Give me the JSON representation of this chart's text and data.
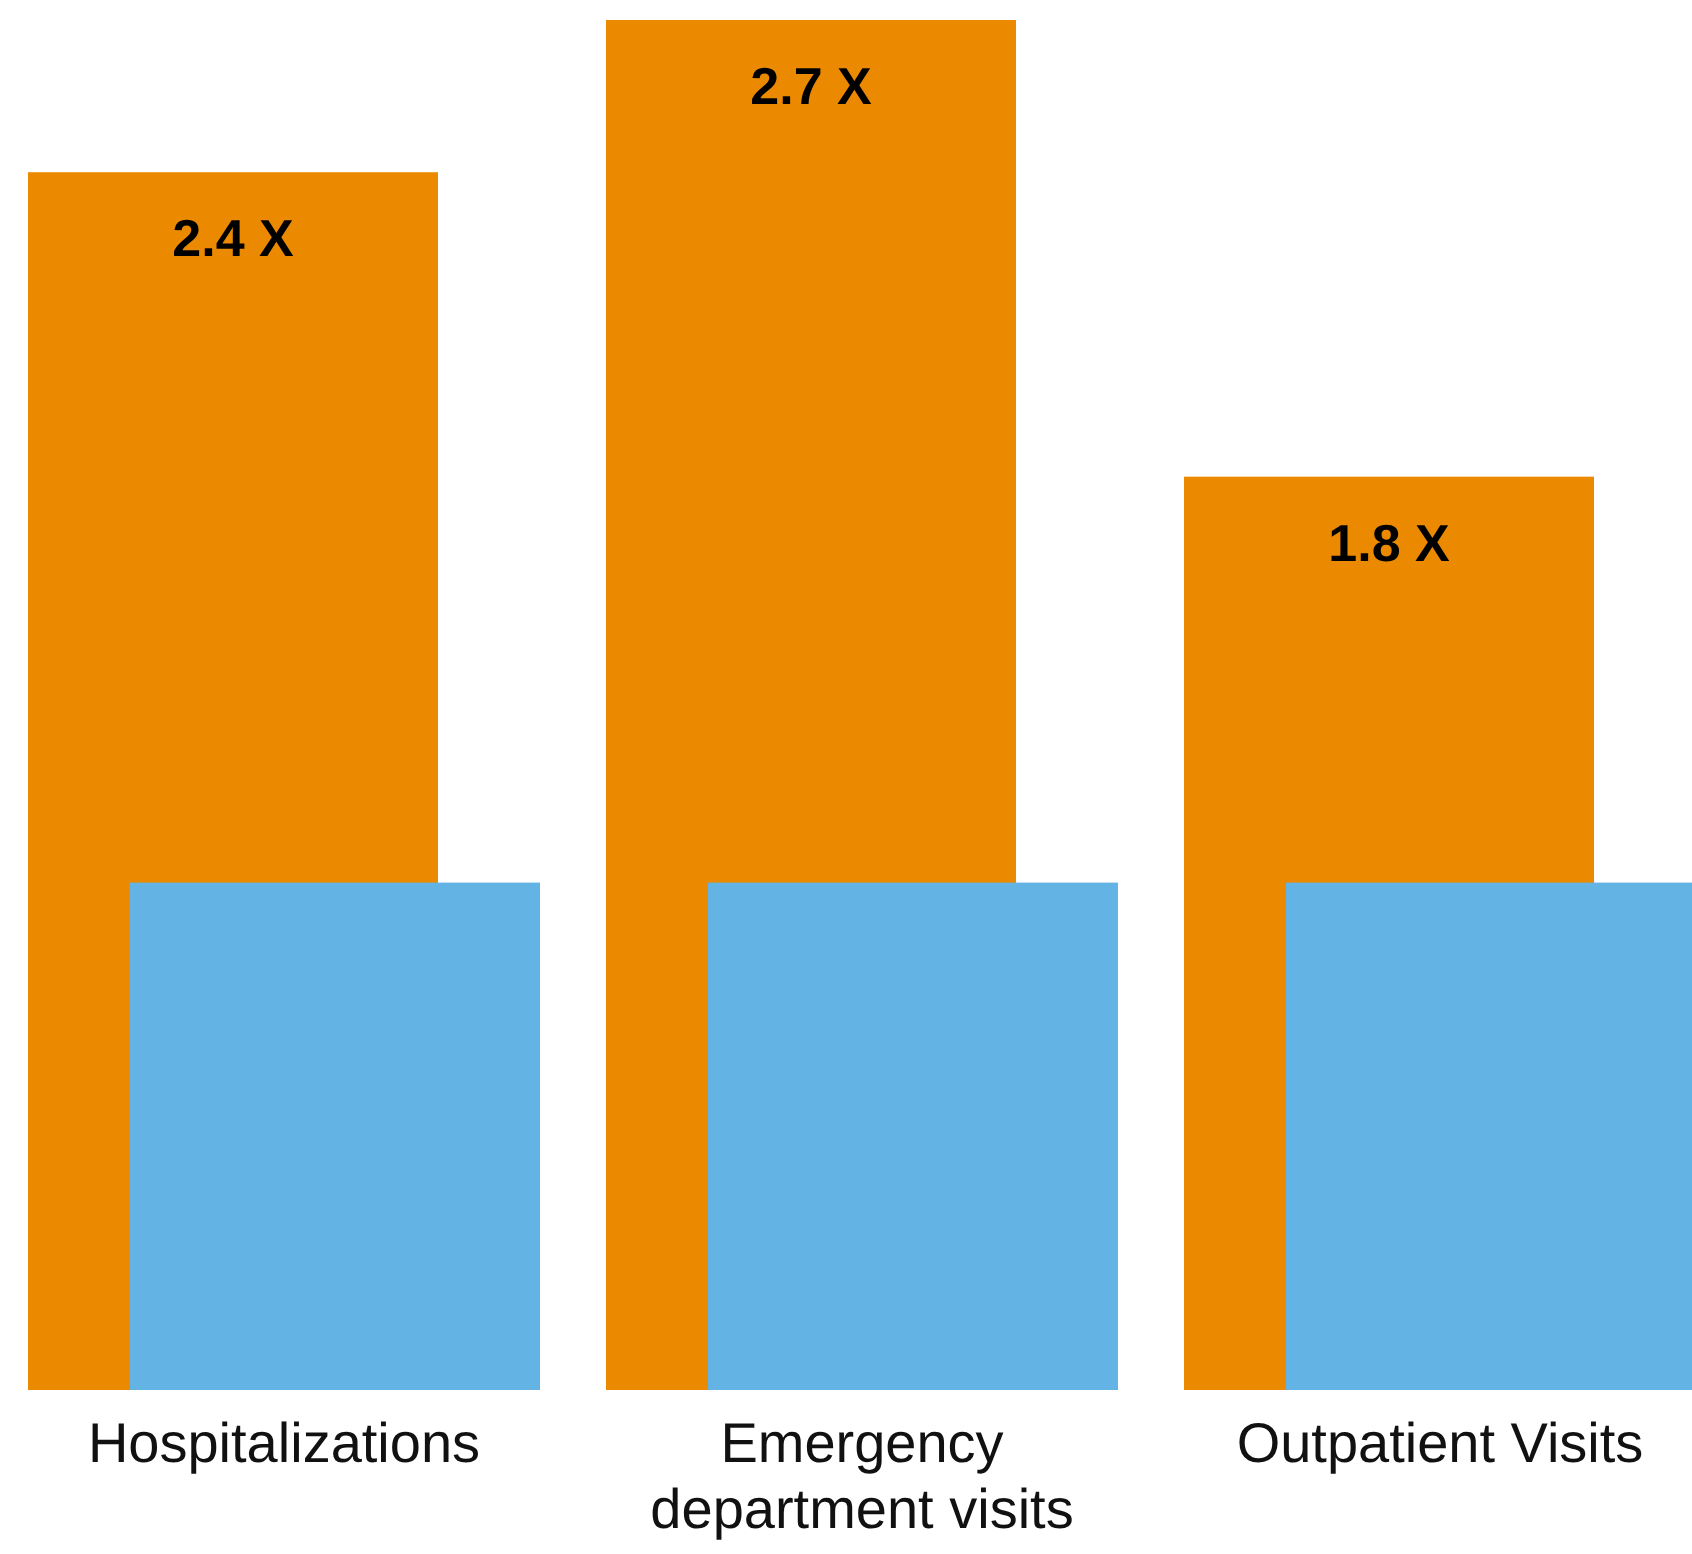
{
  "chart_data": {
    "type": "bar",
    "categories": [
      "Hospitalizations",
      "Emergency department visits",
      "Outpatient Visits"
    ],
    "series": [
      {
        "color": "#eb8a00",
        "values": [
          2.4,
          2.7,
          1.8
        ],
        "value_labels": [
          "2.4 X",
          "2.7 X",
          "1.8 X"
        ]
      },
      {
        "color": "#63b4e4",
        "values": [
          1,
          1,
          1
        ]
      }
    ]
  }
}
